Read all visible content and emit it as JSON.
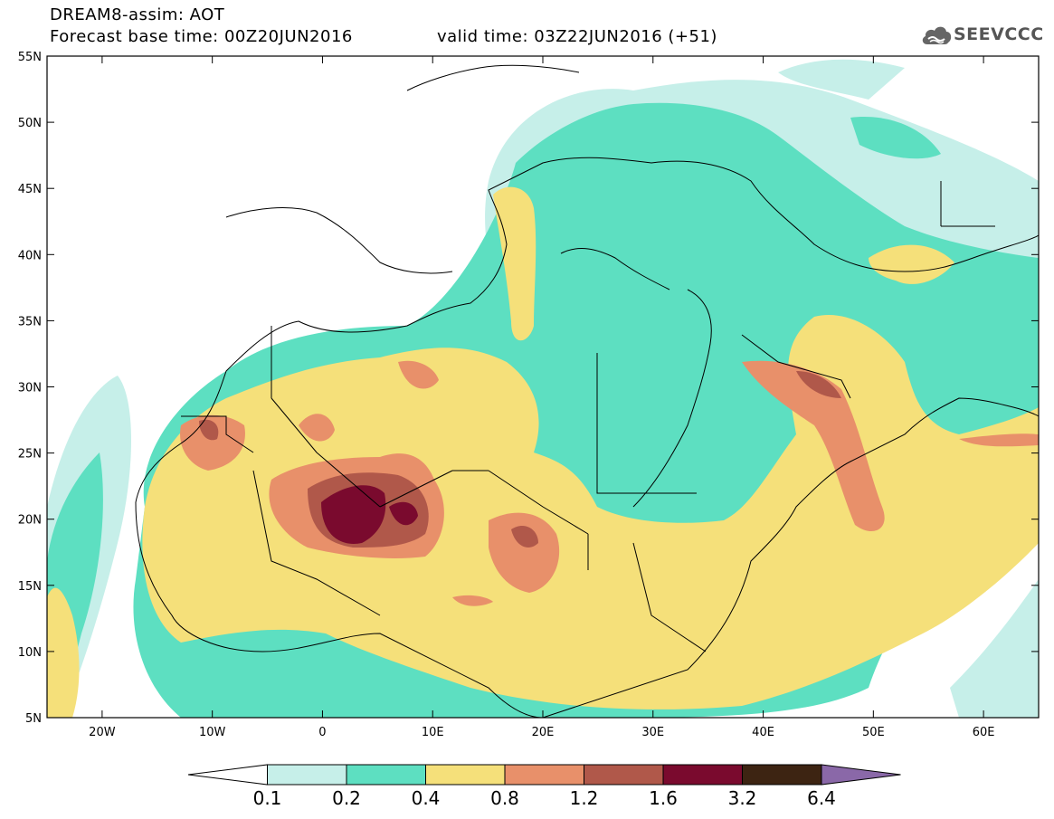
{
  "title": {
    "line1": "DREAM8-assim: AOT",
    "line2": "Forecast base time: 00Z20JUN2016",
    "valid": "valid time: 03Z22JUN2016 (+51)"
  },
  "logo": {
    "text": "SEEVCCC",
    "icon": "cloud-icon"
  },
  "map": {
    "lat_range": [
      5,
      55
    ],
    "lon_range": [
      -25,
      65
    ],
    "lat_ticks": [
      "5N",
      "10N",
      "15N",
      "20N",
      "25N",
      "30N",
      "35N",
      "40N",
      "45N",
      "50N",
      "55N"
    ],
    "lon_ticks": [
      "20W",
      "10W",
      "0",
      "10E",
      "20E",
      "30E",
      "40E",
      "50E",
      "60E"
    ]
  },
  "colorbar": {
    "labels": [
      "0.1",
      "0.2",
      "0.4",
      "0.8",
      "1.2",
      "1.6",
      "3.2",
      "6.4"
    ],
    "colors": [
      "#ffffff",
      "#c6efe9",
      "#5ddfc1",
      "#f5e07a",
      "#e8906a",
      "#b0584a",
      "#7a0a2e",
      "#3d2412",
      "#8a68a8"
    ]
  }
}
